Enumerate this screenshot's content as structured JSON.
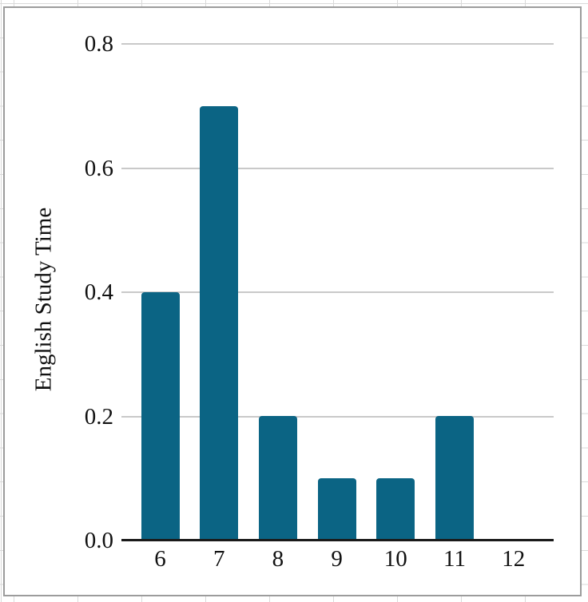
{
  "y_axis_title": "English Study Time",
  "chart_data": {
    "type": "bar",
    "title": "",
    "xlabel": "",
    "ylabel": "English Study Time",
    "categories": [
      "6",
      "7",
      "8",
      "9",
      "10",
      "11",
      "12"
    ],
    "values": [
      0.4,
      0.7,
      0.2,
      0.1,
      0.1,
      0.2,
      0
    ],
    "yticks": [
      0,
      0.2,
      0.4,
      0.6,
      0.8
    ],
    "ytick_labels": [
      "0.0",
      "0.2",
      "0.4",
      "0.6",
      "0.8"
    ],
    "ylim": [
      0,
      0.85
    ],
    "grid": true,
    "legend": false,
    "colors": {
      "bar": "#0b6484",
      "gridline": "#c9c9c9",
      "axis_line": "#1a1a1a",
      "text": "#111111",
      "frame_border": "#9c9c9c",
      "sheet_gridline": "#d9d9d9"
    }
  }
}
